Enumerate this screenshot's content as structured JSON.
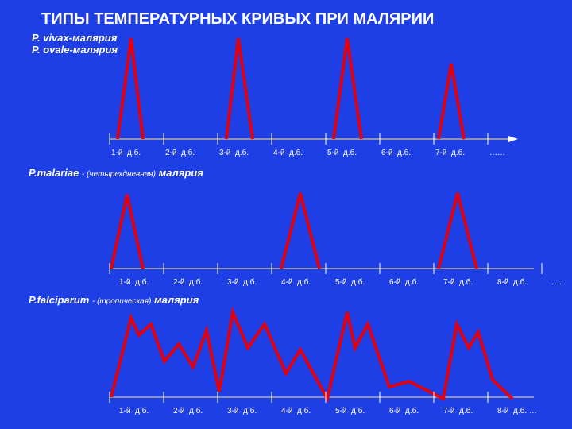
{
  "title": "ТИПЫ ТЕМПЕРАТУРНЫХ КРИВЫХ ПРИ МАЛЯРИИ",
  "panels": [
    {
      "names": [
        "P. vivax-малярия",
        "P. ovale-малярия"
      ],
      "days": [
        "1-й  д.б.",
        "2-й  д.б.",
        "3-й  д.б.",
        "4-й  д.б.",
        "5-й  д.б.",
        "6-й  д.б.",
        "7-й  д.б.",
        "……"
      ]
    },
    {
      "name": "P.malariae",
      "note": "- (четырехдневная)",
      "suffix": "малярия",
      "days": [
        "1-й  д.б.",
        "2-й  д.б.",
        "3-й  д.б.",
        "4-й  д.б.",
        "5-й  д.б.",
        "6-й  д.б.",
        "7-й  д.б.",
        "8-й  д.б.",
        "…."
      ]
    },
    {
      "name": "P.falciparum",
      "note": "- (тропическая)",
      "suffix": "малярия",
      "days": [
        "1-й  д.б.",
        "2-й  д.б.",
        "3-й  д.б.",
        "4-й  д.б.",
        "5-й  д.б.",
        "6-й  д.б.",
        "7-й  д.б.",
        "8-й  д.б. …"
      ]
    }
  ]
}
